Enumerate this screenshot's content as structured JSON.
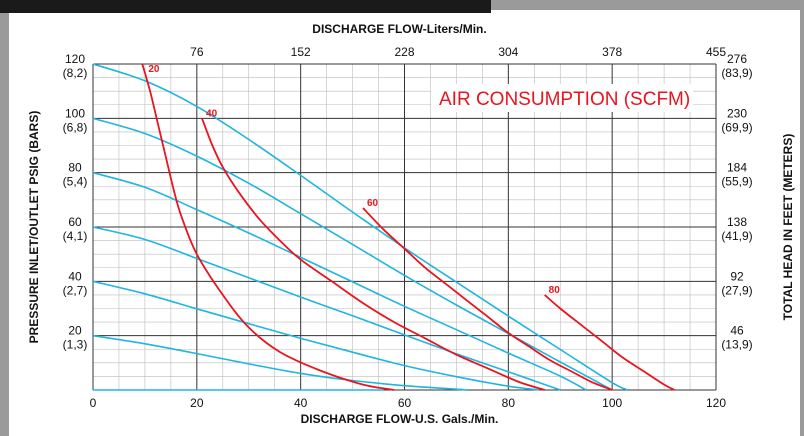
{
  "chart_data": {
    "type": "line",
    "title": "",
    "xlabel": "DISCHARGE FLOW-U.S. Gals./Min.",
    "x2label": "DISCHARGE FLOW-Liters/Min.",
    "ylabel": "PRESSURE INLET/OUTLET PSIG (BARS)",
    "y2label": "TOTAL HEAD IN FEET (METERS)",
    "xlim": [
      0,
      120
    ],
    "ylim": [
      0,
      120
    ],
    "grid": true,
    "x_ticks": [
      "0",
      "20",
      "40",
      "60",
      "80",
      "100",
      "120"
    ],
    "x_tick_values": [
      0,
      20,
      40,
      60,
      80,
      100,
      120
    ],
    "x2_ticks": [
      "76",
      "152",
      "228",
      "304",
      "378",
      "455"
    ],
    "x2_tick_positions": [
      20,
      40,
      60,
      80,
      100,
      120
    ],
    "y_ticks": [
      {
        "value": 20,
        "l1": "20",
        "l2": "(1,3)"
      },
      {
        "value": 40,
        "l1": "40",
        "l2": "(2,7)"
      },
      {
        "value": 60,
        "l1": "60",
        "l2": "(4,1)"
      },
      {
        "value": 80,
        "l1": "80",
        "l2": "(5,4)"
      },
      {
        "value": 100,
        "l1": "100",
        "l2": "(6,8)"
      },
      {
        "value": 120,
        "l1": "120",
        "l2": "(8,2)"
      }
    ],
    "y2_ticks": [
      {
        "value": 20,
        "l1": "46",
        "l2": "(13,9)"
      },
      {
        "value": 40,
        "l1": "92",
        "l2": "(27,9)"
      },
      {
        "value": 60,
        "l1": "138",
        "l2": "(41,9)"
      },
      {
        "value": 80,
        "l1": "184",
        "l2": "(55,9)"
      },
      {
        "value": 100,
        "l1": "230",
        "l2": "(69,9)"
      },
      {
        "value": 120,
        "l1": "276",
        "l2": "(83,9)"
      }
    ],
    "annotation": "AIR CONSUMPTION (SCFM)",
    "colors": {
      "pressure": "#1fb5e0",
      "air": "#e8141e",
      "grid": "#333333",
      "minor_grid": "#bbbbbb"
    },
    "pressure_curves": [
      {
        "x": [
          0,
          10,
          20,
          30,
          40,
          50,
          60,
          70,
          80,
          90,
          100,
          103
        ],
        "y": [
          120,
          113.8,
          104.4,
          92.2,
          79,
          65.5,
          52.3,
          39.7,
          27.2,
          14.9,
          2.7,
          0
        ]
      },
      {
        "x": [
          0,
          10,
          20,
          30,
          40,
          50,
          60,
          70,
          80,
          90,
          100
        ],
        "y": [
          100,
          94.4,
          86.1,
          76.1,
          64.9,
          53.6,
          42.2,
          31.3,
          20.8,
          10.3,
          0
        ]
      },
      {
        "x": [
          0,
          10,
          20,
          30,
          40,
          50,
          60,
          70,
          80,
          90,
          95
        ],
        "y": [
          80,
          74.6,
          66.4,
          57.8,
          48.8,
          39.8,
          30.8,
          22.2,
          13.6,
          5.1,
          0
        ]
      },
      {
        "x": [
          0,
          10,
          20,
          30,
          40,
          50,
          60,
          70,
          80,
          90
        ],
        "y": [
          60,
          55.4,
          48.4,
          41.3,
          34.2,
          27.3,
          20.3,
          13.3,
          6.7,
          0
        ]
      },
      {
        "x": [
          0,
          10,
          20,
          30,
          40,
          50,
          60,
          70,
          80,
          86
        ],
        "y": [
          40,
          35.4,
          29.9,
          24.4,
          19,
          13.9,
          9,
          4.9,
          1.4,
          0
        ]
      },
      {
        "x": [
          0,
          10,
          20,
          30,
          40,
          50,
          60,
          70,
          72
        ],
        "y": [
          20,
          17,
          13.4,
          9.6,
          6.1,
          3.5,
          1.6,
          0.3,
          0
        ]
      },
      {
        "x": [
          0,
          10,
          20,
          30,
          40,
          50,
          56
        ],
        "y": [
          0,
          0,
          0,
          0,
          0,
          0,
          0
        ]
      }
    ],
    "air_curves": [
      {
        "label": "20",
        "x": [
          9.5,
          11,
          12.5,
          14,
          15.5,
          17,
          20,
          25,
          30,
          36,
          44,
          52,
          58
        ],
        "y": [
          120,
          110,
          98,
          86,
          74,
          64,
          50,
          35,
          23,
          14,
          7,
          2,
          0
        ]
      },
      {
        "label": "40",
        "x": [
          21,
          23,
          25,
          28,
          32,
          36,
          40,
          46,
          52,
          58,
          64,
          70,
          76,
          82,
          87
        ],
        "y": [
          100,
          90,
          82,
          73,
          63,
          55,
          48,
          40,
          32,
          25,
          19,
          13,
          8,
          3,
          0
        ]
      },
      {
        "label": "60",
        "x": [
          52,
          56,
          60,
          64,
          68,
          72,
          76,
          80,
          84,
          88,
          92,
          96,
          100
        ],
        "y": [
          67,
          59,
          52,
          45,
          39,
          33,
          27,
          21,
          16,
          11,
          7,
          3,
          0
        ]
      },
      {
        "label": "80",
        "x": [
          87,
          90,
          94,
          98,
          102,
          106,
          110,
          112
        ],
        "y": [
          35,
          30,
          24,
          18,
          12,
          7,
          2,
          0
        ]
      }
    ]
  }
}
